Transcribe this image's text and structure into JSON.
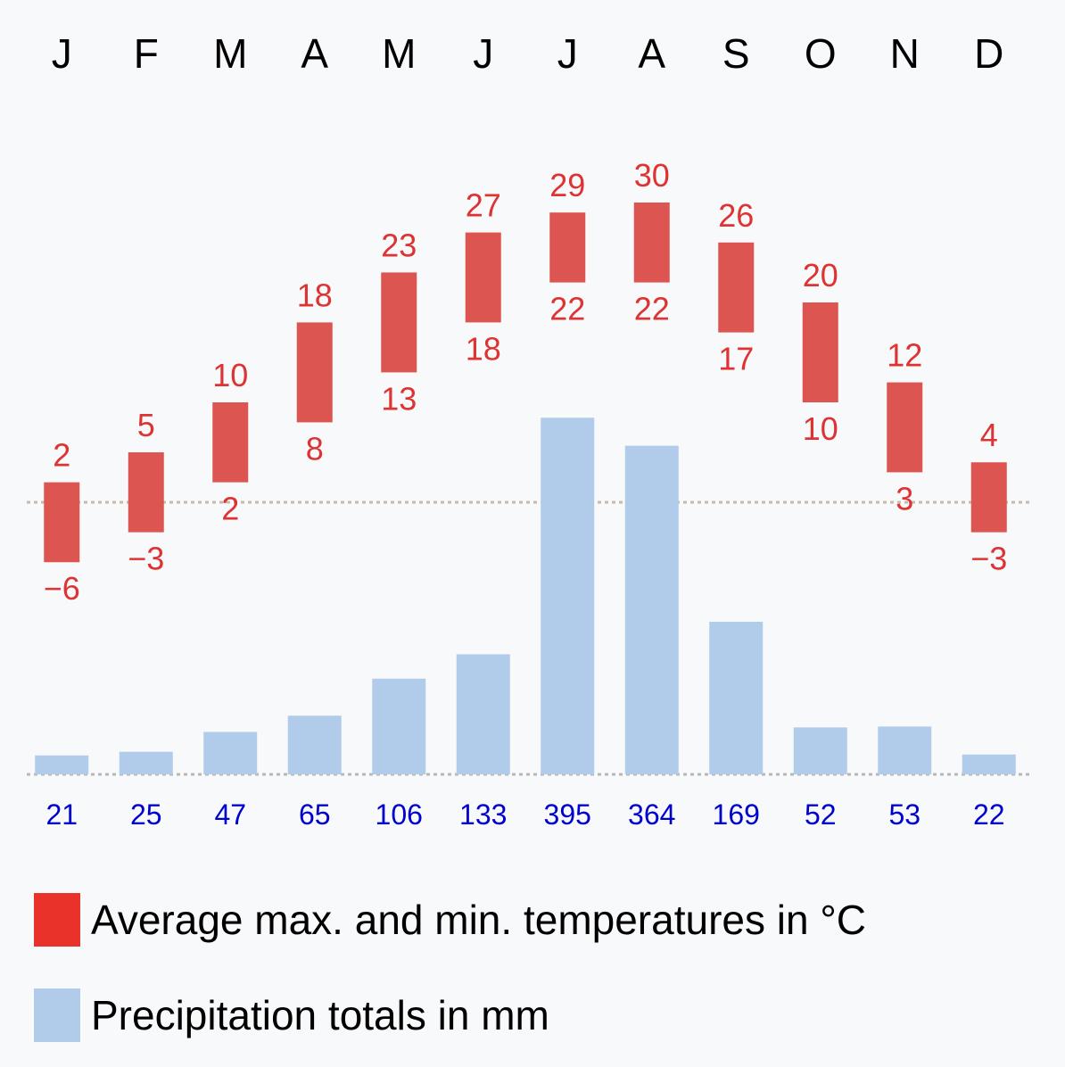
{
  "chart_data": {
    "type": "bar",
    "categories": [
      "J",
      "F",
      "M",
      "A",
      "M",
      "J",
      "J",
      "A",
      "S",
      "O",
      "N",
      "D"
    ],
    "series": [
      {
        "name": "Average max. and min. temperatures in °C",
        "max": [
          2,
          5,
          10,
          18,
          23,
          27,
          29,
          30,
          26,
          20,
          12,
          4
        ],
        "min": [
          -6,
          -3,
          2,
          8,
          13,
          18,
          22,
          22,
          17,
          10,
          3,
          -3
        ],
        "max_labels": [
          "2",
          "5",
          "10",
          "18",
          "23",
          "27",
          "29",
          "30",
          "26",
          "20",
          "12",
          "4"
        ],
        "min_labels": [
          "−6",
          "−3",
          "2",
          "8",
          "13",
          "18",
          "22",
          "22",
          "17",
          "10",
          "3",
          "−3"
        ]
      },
      {
        "name": "Precipitation totals in mm",
        "values": [
          21,
          25,
          47,
          65,
          106,
          133,
          395,
          364,
          169,
          52,
          53,
          22
        ],
        "labels": [
          "21",
          "25",
          "47",
          "65",
          "106",
          "133",
          "395",
          "364",
          "169",
          "52",
          "53",
          "22"
        ]
      }
    ],
    "temp_zero_line": 0,
    "colors": {
      "temp": "#dd5550",
      "precip": "#b1cbea",
      "temp_text": "#dd3333",
      "precip_text": "#0000cc",
      "legend_temp": "#e8322a"
    }
  },
  "legend": {
    "temp": "Average max. and min. temperatures in °C",
    "precip": "Precipitation totals in mm"
  }
}
